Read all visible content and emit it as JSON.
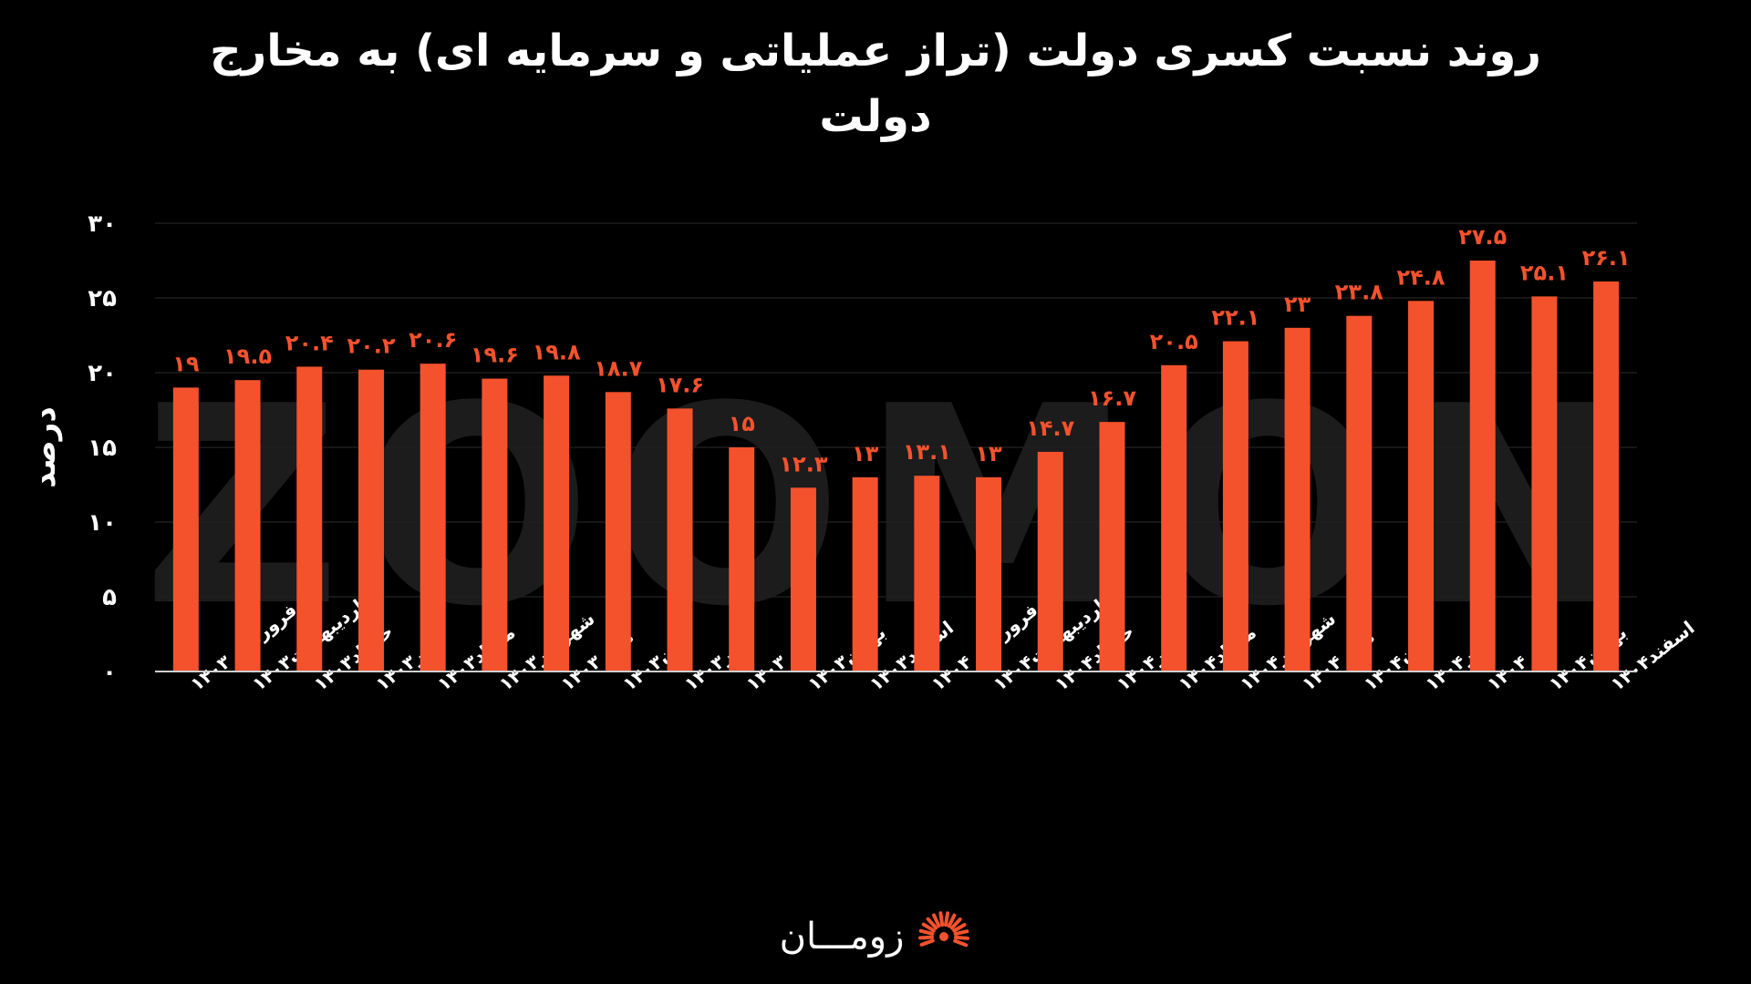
{
  "colors": {
    "background": "#000000",
    "bar": "#f4522d",
    "bar_label": "#f4522d",
    "text": "#ffffff",
    "grid": "#1e1e1e",
    "axis": "#cfcfcf",
    "watermark": "#1c1c1c"
  },
  "watermark": "ZOOMON",
  "brand": {
    "name": "زومـــان",
    "logo_icon": "sunburst-icon"
  },
  "chart_data": {
    "type": "bar",
    "title": "روند نسبت کسری دولت  (تراز عملیاتی و سرمایه ای) به مخارج دولت",
    "xlabel": "",
    "ylabel": "درصد",
    "ylim": [
      0,
      30
    ],
    "yticks": [
      0,
      5,
      10,
      15,
      20,
      25,
      30
    ],
    "ytick_labels": [
      "۰",
      "۵",
      "۱۰",
      "۱۵",
      "۲۰",
      "۲۵",
      "۳۰"
    ],
    "grid": true,
    "legend": "none",
    "categories": [
      "فروردین ۱۴۰۳",
      "اردیبهشت۱۴۰۳",
      "خرداد۱۴۰۳",
      "تیر۱۴۰۳",
      "مرداد۱۴۰۳",
      "شهریور۱۴۰۳",
      "مهر ۱۴۰۳",
      "آبان۱۴۰۳",
      "آذر۱۴۰۳",
      "دی ۱۴۰۳",
      "بهمن۱۴۰۳",
      "اسفند۱۴۰۳",
      "فروردین ۱۴۰۴",
      "اردیبهشت۱۴۰۴",
      "خرداد۱۴۰۴",
      "تیر۱۴۰۴",
      "مرداد۱۴۰۴",
      "شهریور۱۴۰۴",
      "مهر ۱۴۰۴",
      "آبان۱۴۰۴",
      "آذر۱۴۰۴",
      "دی ۱۴۰۴",
      "بهمن۱۴۰۴",
      "اسفند۱۴۰۴"
    ],
    "values": [
      19,
      19.5,
      20.4,
      20.2,
      20.6,
      19.6,
      19.8,
      18.7,
      17.6,
      15,
      12.3,
      13,
      13.1,
      13,
      14.7,
      16.7,
      20.5,
      22.1,
      23,
      23.8,
      24.8,
      27.5,
      25.1,
      26.1
    ],
    "value_labels": [
      "۱۹",
      "۱۹.۵",
      "۲۰.۴",
      "۲۰.۲",
      "۲۰.۶",
      "۱۹.۶",
      "۱۹.۸",
      "۱۸.۷",
      "۱۷.۶",
      "۱۵",
      "۱۲.۳",
      "۱۳",
      "۱۳.۱",
      "۱۳",
      "۱۴.۷",
      "۱۶.۷",
      "۲۰.۵",
      "۲۲.۱",
      "۲۳",
      "۲۳.۸",
      "۲۴.۸",
      "۲۷.۵",
      "۲۵.۱",
      "۲۶.۱"
    ]
  }
}
